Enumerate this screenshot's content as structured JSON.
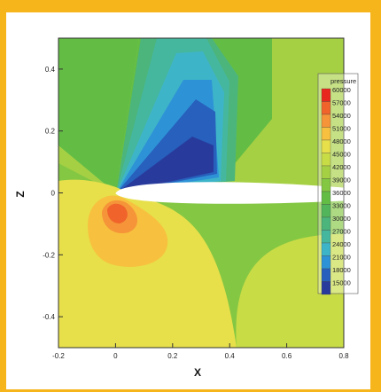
{
  "chart_data": {
    "type": "contour",
    "xlabel": "X",
    "ylabel": "Z",
    "xlim": [
      -0.2,
      0.8
    ],
    "ylim": [
      -0.5,
      0.5
    ],
    "xticks": [
      "-0.2",
      "0",
      "0.2",
      "0.4",
      "0.6",
      "0.8"
    ],
    "yticks": [
      "0.4",
      "0.2",
      "0",
      "-0.2",
      "-0.4"
    ],
    "legend": {
      "title": "pressure",
      "position": "right",
      "levels": [
        "60000",
        "57000",
        "54000",
        "51000",
        "48000",
        "45000",
        "42000",
        "39000",
        "36000",
        "33000",
        "30000",
        "27000",
        "24000",
        "21000",
        "18000",
        "15000"
      ],
      "colors": [
        "#e8281e",
        "#f0642c",
        "#f59438",
        "#f7c13f",
        "#e7e04a",
        "#c8dc46",
        "#a6d044",
        "#84c743",
        "#63bd45",
        "#52b55b",
        "#4cb57b",
        "#45b79f",
        "#3eb4c9",
        "#2e93d6",
        "#2760bd",
        "#283b9c"
      ]
    }
  }
}
